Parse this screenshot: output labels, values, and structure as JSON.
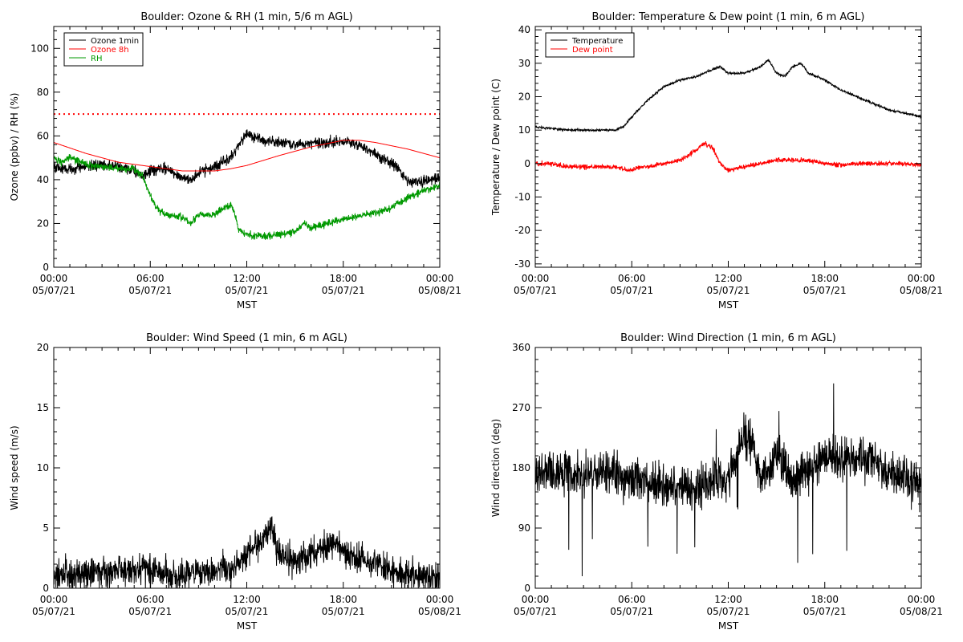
{
  "figure": {
    "background": "#ffffff",
    "colors": {
      "ozone_1min": "#000000",
      "ozone_8h": "#ff0000",
      "rh": "#009900",
      "temperature": "#000000",
      "dew_point": "#ff0000",
      "wind": "#000000"
    }
  },
  "chart_data": [
    {
      "id": "ozone_rh",
      "type": "line",
      "title": "Boulder: Ozone & RH (1 min, 5/6 m AGL)",
      "xlabel": "MST",
      "ylabel": "Ozone (ppbv) / RH (%)",
      "xlim": [
        0,
        24
      ],
      "ylim": [
        0,
        110
      ],
      "x_ticks": [
        {
          "hours": 0,
          "time": "00:00",
          "date": "05/07/21"
        },
        {
          "hours": 6,
          "time": "06:00",
          "date": "05/07/21"
        },
        {
          "hours": 12,
          "time": "12:00",
          "date": "05/07/21"
        },
        {
          "hours": 18,
          "time": "18:00",
          "date": "05/07/21"
        },
        {
          "hours": 24,
          "time": "00:00",
          "date": "05/08/21"
        }
      ],
      "y_ticks": [
        0,
        20,
        40,
        60,
        80,
        100
      ],
      "legend_position": "top-left",
      "reference_lines": [
        {
          "y": 70,
          "color": "#ff0000",
          "style": "dotted"
        }
      ],
      "series": [
        {
          "name": "Ozone 1min",
          "color": "#000000",
          "noise": 1.8,
          "x": [
            0,
            0.5,
            1,
            2,
            3,
            4,
            5,
            5.5,
            6,
            7,
            8,
            8.5,
            9,
            10,
            11,
            11.5,
            12,
            13,
            14,
            15,
            16,
            17,
            18,
            18.5,
            19,
            20,
            21,
            21.5,
            22,
            23,
            24
          ],
          "y": [
            46,
            45,
            45,
            46,
            47,
            46,
            44,
            41,
            44,
            45,
            41,
            40,
            43,
            46,
            50,
            55,
            61,
            58,
            57,
            56,
            57,
            57,
            58,
            57,
            56,
            52,
            47,
            45,
            39,
            39,
            41
          ]
        },
        {
          "name": "Ozone 8h",
          "color": "#ff0000",
          "noise": 0,
          "x": [
            0,
            2,
            4,
            6,
            8,
            10,
            11,
            12,
            14,
            16,
            18,
            19,
            20,
            22,
            24
          ],
          "y": [
            57,
            52,
            48,
            46,
            44,
            44,
            45,
            46.5,
            51,
            55,
            58,
            58,
            57,
            54,
            50
          ]
        },
        {
          "name": "RH",
          "color": "#009900",
          "noise": 1.2,
          "x": [
            0,
            0.5,
            1,
            2,
            3,
            4,
            5,
            5.5,
            6,
            6.5,
            7,
            8,
            8.5,
            9,
            10,
            10.5,
            11,
            11.2,
            11.5,
            12,
            13,
            14,
            15,
            15.5,
            16,
            17,
            18,
            20,
            21,
            22,
            23,
            24
          ],
          "y": [
            50,
            48,
            50,
            47,
            46,
            45,
            45,
            42,
            33,
            26,
            24,
            23,
            20,
            24,
            24,
            27,
            28,
            26,
            17,
            15,
            14,
            15,
            16,
            20,
            18,
            20,
            22,
            25,
            27,
            32,
            35,
            37
          ]
        }
      ]
    },
    {
      "id": "temp_dew",
      "type": "line",
      "title": "Boulder: Temperature & Dew point (1 min, 6 m AGL)",
      "xlabel": "MST",
      "ylabel": "Temperature / Dew point (C)",
      "xlim": [
        0,
        24
      ],
      "ylim": [
        -31,
        41
      ],
      "x_ticks": [
        {
          "hours": 0,
          "time": "00:00",
          "date": "05/07/21"
        },
        {
          "hours": 6,
          "time": "06:00",
          "date": "05/07/21"
        },
        {
          "hours": 12,
          "time": "12:00",
          "date": "05/07/21"
        },
        {
          "hours": 18,
          "time": "18:00",
          "date": "05/07/21"
        },
        {
          "hours": 24,
          "time": "00:00",
          "date": "05/08/21"
        }
      ],
      "y_ticks": [
        -30,
        -20,
        -10,
        0,
        10,
        20,
        30,
        40
      ],
      "legend_position": "top-left",
      "reference_lines": [],
      "series": [
        {
          "name": "Temperature",
          "color": "#000000",
          "noise": 0.25,
          "x": [
            0,
            1,
            2,
            3,
            4,
            5,
            5.5,
            6,
            7,
            8,
            9,
            10,
            11,
            11.5,
            12,
            13,
            14,
            14.5,
            15,
            15.5,
            16,
            16.5,
            17,
            18,
            19,
            20,
            21,
            22,
            23,
            24
          ],
          "y": [
            11,
            10.5,
            10,
            10,
            10,
            10,
            11,
            14,
            19,
            23,
            25,
            26,
            28,
            29,
            27,
            27,
            29,
            31,
            27,
            26,
            29,
            30,
            27,
            25,
            22,
            20,
            18,
            16,
            15,
            14
          ]
        },
        {
          "name": "Dew point",
          "color": "#ff0000",
          "noise": 0.5,
          "x": [
            0,
            1,
            2,
            3,
            4,
            5,
            6,
            6.5,
            7,
            8,
            9,
            10,
            10.5,
            11,
            11.5,
            12,
            13,
            14,
            15,
            16,
            17,
            18,
            19,
            20,
            21,
            22,
            23,
            24
          ],
          "y": [
            0,
            0,
            -1,
            -1,
            -1,
            -1,
            -2,
            -1,
            -1,
            0,
            1,
            4,
            6,
            5,
            0,
            -2,
            -1,
            0,
            1,
            1,
            1,
            0,
            -0.5,
            0,
            0,
            0,
            0,
            -0.5
          ]
        }
      ]
    },
    {
      "id": "wind_speed",
      "type": "line",
      "title": "Boulder: Wind Speed (1 min, 6 m AGL)",
      "xlabel": "MST",
      "ylabel": "Wind speed (m/s)",
      "xlim": [
        0,
        24
      ],
      "ylim": [
        0,
        20
      ],
      "x_ticks": [
        {
          "hours": 0,
          "time": "00:00",
          "date": "05/07/21"
        },
        {
          "hours": 6,
          "time": "06:00",
          "date": "05/07/21"
        },
        {
          "hours": 12,
          "time": "12:00",
          "date": "05/07/21"
        },
        {
          "hours": 18,
          "time": "18:00",
          "date": "05/07/21"
        },
        {
          "hours": 24,
          "time": "00:00",
          "date": "05/08/21"
        }
      ],
      "y_ticks": [
        0,
        5,
        10,
        15,
        20
      ],
      "legend_position": "none",
      "reference_lines": [],
      "series": [
        {
          "name": "",
          "color": "#000000",
          "noise": 0.9,
          "min": 0,
          "x": [
            0,
            2,
            4,
            6,
            7,
            8,
            9,
            10,
            11,
            11.5,
            12,
            13,
            13.5,
            14,
            14.5,
            15,
            16,
            17,
            17.5,
            18,
            19,
            20,
            21,
            22,
            23,
            24
          ],
          "y": [
            1,
            1.3,
            1.5,
            1.6,
            1.2,
            0.9,
            1.2,
            1.5,
            1.5,
            2.2,
            3,
            4,
            5,
            3,
            2.5,
            2.3,
            3,
            3.5,
            4,
            3,
            2.5,
            2,
            1.5,
            1,
            1,
            0.8
          ]
        }
      ]
    },
    {
      "id": "wind_direction",
      "type": "line",
      "title": "Boulder: Wind Direction (1 min, 6 m AGL)",
      "xlabel": "MST",
      "ylabel": "Wind direction (deg)",
      "xlim": [
        0,
        24
      ],
      "ylim": [
        0,
        360
      ],
      "x_ticks": [
        {
          "hours": 0,
          "time": "00:00",
          "date": "05/07/21"
        },
        {
          "hours": 6,
          "time": "06:00",
          "date": "05/07/21"
        },
        {
          "hours": 12,
          "time": "12:00",
          "date": "05/07/21"
        },
        {
          "hours": 18,
          "time": "18:00",
          "date": "05/07/21"
        },
        {
          "hours": 24,
          "time": "00:00",
          "date": "05/08/21"
        }
      ],
      "y_ticks": [
        0,
        90,
        180,
        270,
        360
      ],
      "legend_position": "none",
      "reference_lines": [],
      "series": [
        {
          "name": "",
          "color": "#000000",
          "noise": 22,
          "min": 0,
          "max": 360,
          "x": [
            0,
            1,
            2,
            3,
            4,
            5,
            6,
            7,
            8,
            9,
            10,
            11,
            12,
            13,
            13.5,
            14,
            14.5,
            15,
            15.5,
            16,
            17,
            18,
            19,
            20,
            21,
            22,
            23,
            24
          ],
          "y": [
            165,
            175,
            175,
            170,
            175,
            170,
            165,
            160,
            150,
            150,
            150,
            160,
            165,
            230,
            220,
            170,
            170,
            200,
            180,
            165,
            180,
            195,
            195,
            195,
            195,
            175,
            165,
            150
          ]
        }
      ]
    }
  ]
}
